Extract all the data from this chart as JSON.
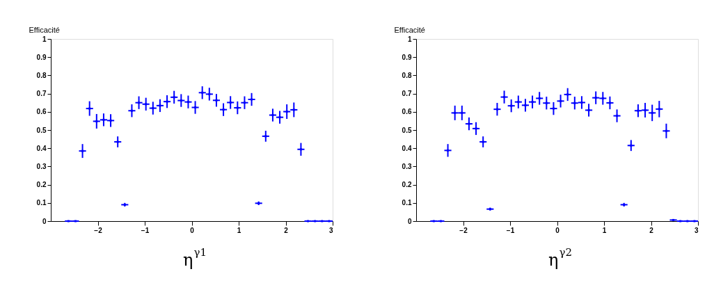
{
  "chart_data": [
    {
      "type": "scatter",
      "ylabel": "Efficacité",
      "xlabel": "η$^{γ1}$",
      "color": "#0000ff",
      "grid": false,
      "xlim": [
        -3,
        3
      ],
      "xticks": [
        -2,
        -1,
        0,
        1,
        2,
        3
      ],
      "ylim": [
        0,
        1
      ],
      "yticks": [
        0,
        0.1,
        0.2,
        0.3,
        0.4,
        0.5,
        0.6,
        0.7,
        0.8,
        0.9,
        1
      ],
      "x": [
        -2.625,
        -2.475,
        -2.325,
        -2.175,
        -2.025,
        -1.875,
        -1.725,
        -1.575,
        -1.425,
        -1.275,
        -1.125,
        -0.975,
        -0.825,
        -0.675,
        -0.525,
        -0.375,
        -0.225,
        -0.075,
        0.075,
        0.225,
        0.375,
        0.525,
        0.675,
        0.825,
        0.975,
        1.125,
        1.275,
        1.425,
        1.575,
        1.725,
        1.875,
        2.025,
        2.175,
        2.325,
        2.475,
        2.625,
        2.775,
        2.925
      ],
      "values": [
        0,
        0,
        0.385,
        0.618,
        0.548,
        0.556,
        0.552,
        0.435,
        0.09,
        0.606,
        0.65,
        0.642,
        0.62,
        0.634,
        0.656,
        0.68,
        0.662,
        0.654,
        0.624,
        0.705,
        0.697,
        0.663,
        0.612,
        0.651,
        0.622,
        0.65,
        0.668,
        0.098,
        0.466,
        0.582,
        0.57,
        0.601,
        0.611,
        0.394,
        0,
        0,
        0,
        0
      ],
      "errors": [
        null,
        null,
        0.038,
        0.04,
        0.04,
        0.035,
        0.035,
        0.03,
        0.01,
        0.035,
        0.035,
        0.035,
        0.035,
        0.035,
        0.035,
        0.035,
        0.035,
        0.035,
        0.035,
        0.035,
        0.035,
        0.035,
        0.035,
        0.035,
        0.035,
        0.035,
        0.035,
        0.01,
        0.03,
        0.035,
        0.035,
        0.04,
        0.04,
        0.035,
        null,
        null,
        null,
        null
      ],
      "xerrors": [
        0.075,
        0.075,
        0.075,
        0.075,
        0.075,
        0.075,
        0.075,
        0.075,
        0.075,
        0.075,
        0.075,
        0.075,
        0.075,
        0.075,
        0.075,
        0.075,
        0.075,
        0.075,
        0.075,
        0.075,
        0.075,
        0.075,
        0.075,
        0.075,
        0.075,
        0.075,
        0.075,
        0.075,
        0.075,
        0.075,
        0.075,
        0.075,
        0.075,
        0.075,
        0.075,
        0.075,
        0.075,
        0.075
      ]
    },
    {
      "type": "scatter",
      "ylabel": "Efficacité",
      "xlabel": "η$^{γ2}$",
      "color": "#0000ff",
      "grid": false,
      "xlim": [
        -3,
        3
      ],
      "xticks": [
        -2,
        -1,
        0,
        1,
        2,
        3
      ],
      "ylim": [
        0,
        1
      ],
      "yticks": [
        0,
        0.1,
        0.2,
        0.3,
        0.4,
        0.5,
        0.6,
        0.7,
        0.8,
        0.9,
        1
      ],
      "x": [
        -2.625,
        -2.475,
        -2.325,
        -2.175,
        -2.025,
        -1.875,
        -1.725,
        -1.575,
        -1.425,
        -1.275,
        -1.125,
        -0.975,
        -0.825,
        -0.675,
        -0.525,
        -0.375,
        -0.225,
        -0.075,
        0.075,
        0.225,
        0.375,
        0.525,
        0.675,
        0.825,
        0.975,
        1.125,
        1.275,
        1.425,
        1.575,
        1.725,
        1.875,
        2.025,
        2.175,
        2.325,
        2.475,
        2.625,
        2.775,
        2.925
      ],
      "values": [
        0,
        0,
        0.388,
        0.594,
        0.594,
        0.534,
        0.508,
        0.435,
        0.066,
        0.614,
        0.681,
        0.633,
        0.654,
        0.636,
        0.654,
        0.674,
        0.648,
        0.618,
        0.659,
        0.695,
        0.648,
        0.651,
        0.609,
        0.677,
        0.674,
        0.649,
        0.578,
        0.09,
        0.415,
        0.606,
        0.609,
        0.594,
        0.615,
        0.495,
        0.006,
        0,
        0,
        0
      ],
      "errors": [
        null,
        null,
        0.035,
        0.04,
        0.04,
        0.035,
        0.035,
        0.03,
        0.008,
        0.035,
        0.035,
        0.035,
        0.035,
        0.035,
        0.035,
        0.035,
        0.035,
        0.035,
        0.035,
        0.035,
        0.035,
        0.035,
        0.035,
        0.035,
        0.035,
        0.035,
        0.035,
        0.01,
        0.03,
        0.035,
        0.04,
        0.045,
        0.045,
        0.04,
        null,
        null,
        null,
        null
      ],
      "xerrors": [
        0.075,
        0.075,
        0.075,
        0.075,
        0.075,
        0.075,
        0.075,
        0.075,
        0.075,
        0.075,
        0.075,
        0.075,
        0.075,
        0.075,
        0.075,
        0.075,
        0.075,
        0.075,
        0.075,
        0.075,
        0.075,
        0.075,
        0.075,
        0.075,
        0.075,
        0.075,
        0.075,
        0.075,
        0.075,
        0.075,
        0.075,
        0.075,
        0.075,
        0.075,
        0.075,
        0.075,
        0.075,
        0.075
      ]
    }
  ]
}
